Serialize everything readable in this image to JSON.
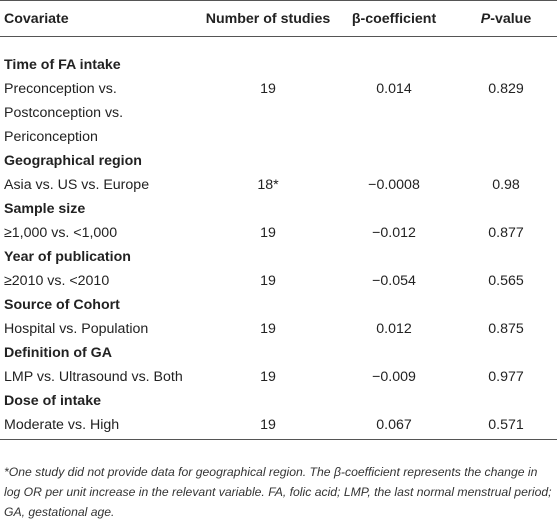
{
  "table": {
    "headers": {
      "covariate": "Covariate",
      "number": "Number of studies",
      "beta": "β-coefficient",
      "pvalue_italic": "P",
      "pvalue_rest": "-value"
    },
    "groups": [
      {
        "title": "Time of FA intake",
        "label": "Preconception vs. Postconception vs. Periconception",
        "number": "19",
        "beta": "0.014",
        "pvalue": "0.829"
      },
      {
        "title": "Geographical region",
        "label": "Asia vs. US vs. Europe",
        "number": "18*",
        "beta": "−0.0008",
        "pvalue": "0.98"
      },
      {
        "title": "Sample size",
        "label": "≥1,000 vs. <1,000",
        "number": "19",
        "beta": "−0.012",
        "pvalue": "0.877"
      },
      {
        "title": "Year of publication",
        "label": "≥2010 vs. <2010",
        "number": "19",
        "beta": "−0.054",
        "pvalue": "0.565"
      },
      {
        "title": "Source of Cohort",
        "label": "Hospital vs. Population",
        "number": "19",
        "beta": "0.012",
        "pvalue": "0.875"
      },
      {
        "title": "Definition of GA",
        "label": "LMP vs. Ultrasound vs. Both",
        "number": "19",
        "beta": "−0.009",
        "pvalue": "0.977"
      },
      {
        "title": "Dose of intake",
        "label": "Moderate vs. High",
        "number": "19",
        "beta": "0.067",
        "pvalue": "0.571"
      }
    ]
  },
  "footnote": "*One study did not provide data for geographical region. The β-coefficient represents the change in log OR per unit increase in the relevant variable. FA, folic acid; LMP, the last normal menstrual period; GA, gestational age."
}
